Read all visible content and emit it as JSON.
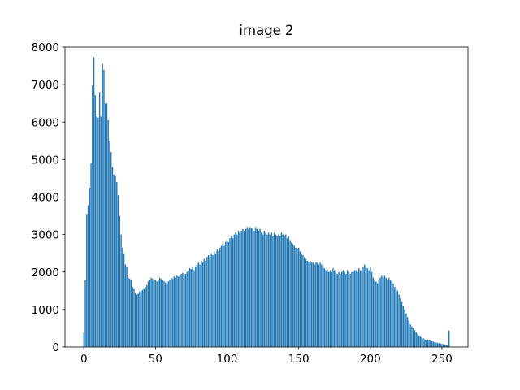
{
  "chart_data": {
    "type": "bar",
    "title": "image 2",
    "color": "#1f77b4",
    "x": [
      0,
      1,
      2,
      3,
      4,
      5,
      6,
      7,
      8,
      9,
      10,
      11,
      12,
      13,
      14,
      15,
      16,
      17,
      18,
      19,
      20,
      21,
      22,
      23,
      24,
      25,
      26,
      27,
      28,
      29,
      30,
      31,
      32,
      33,
      34,
      35,
      36,
      37,
      38,
      39,
      40,
      41,
      42,
      43,
      44,
      45,
      46,
      47,
      48,
      49,
      50,
      51,
      52,
      53,
      54,
      55,
      56,
      57,
      58,
      59,
      60,
      61,
      62,
      63,
      64,
      65,
      66,
      67,
      68,
      69,
      70,
      71,
      72,
      73,
      74,
      75,
      76,
      77,
      78,
      79,
      80,
      81,
      82,
      83,
      84,
      85,
      86,
      87,
      88,
      89,
      90,
      91,
      92,
      93,
      94,
      95,
      96,
      97,
      98,
      99,
      100,
      101,
      102,
      103,
      104,
      105,
      106,
      107,
      108,
      109,
      110,
      111,
      112,
      113,
      114,
      115,
      116,
      117,
      118,
      119,
      120,
      121,
      122,
      123,
      124,
      125,
      126,
      127,
      128,
      129,
      130,
      131,
      132,
      133,
      134,
      135,
      136,
      137,
      138,
      139,
      140,
      141,
      142,
      143,
      144,
      145,
      146,
      147,
      148,
      149,
      150,
      151,
      152,
      153,
      154,
      155,
      156,
      157,
      158,
      159,
      160,
      161,
      162,
      163,
      164,
      165,
      166,
      167,
      168,
      169,
      170,
      171,
      172,
      173,
      174,
      175,
      176,
      177,
      178,
      179,
      180,
      181,
      182,
      183,
      184,
      185,
      186,
      187,
      188,
      189,
      190,
      191,
      192,
      193,
      194,
      195,
      196,
      197,
      198,
      199,
      200,
      201,
      202,
      203,
      204,
      205,
      206,
      207,
      208,
      209,
      210,
      211,
      212,
      213,
      214,
      215,
      216,
      217,
      218,
      219,
      220,
      221,
      222,
      223,
      224,
      225,
      226,
      227,
      228,
      229,
      230,
      231,
      232,
      233,
      234,
      235,
      236,
      237,
      238,
      239,
      240,
      241,
      242,
      243,
      244,
      245,
      246,
      247,
      248,
      249,
      250,
      251,
      252,
      253,
      254,
      255
    ],
    "values": [
      380,
      1780,
      3550,
      3780,
      4250,
      4900,
      6980,
      7730,
      6720,
      6150,
      6120,
      6800,
      6150,
      7560,
      7400,
      6500,
      6500,
      6050,
      5500,
      5200,
      4800,
      4600,
      4580,
      4400,
      4050,
      3500,
      3000,
      2650,
      2500,
      2200,
      2150,
      1850,
      1820,
      1800,
      1600,
      1550,
      1450,
      1400,
      1420,
      1480,
      1500,
      1520,
      1550,
      1600,
      1650,
      1750,
      1800,
      1850,
      1820,
      1800,
      1780,
      1750,
      1800,
      1850,
      1820,
      1800,
      1760,
      1720,
      1700,
      1750,
      1800,
      1850,
      1820,
      1880,
      1850,
      1900,
      1880,
      1920,
      1950,
      1980,
      1900,
      1950,
      2000,
      2050,
      2100,
      2080,
      2150,
      2050,
      2150,
      2200,
      2250,
      2200,
      2300,
      2250,
      2350,
      2300,
      2400,
      2450,
      2400,
      2500,
      2450,
      2550,
      2500,
      2600,
      2550,
      2650,
      2700,
      2750,
      2700,
      2800,
      2850,
      2800,
      2900,
      2950,
      2900,
      3000,
      3050,
      3000,
      3100,
      3050,
      3100,
      3150,
      3100,
      3150,
      3200,
      3150,
      3200,
      3180,
      3150,
      3100,
      3200,
      3150,
      3100,
      3150,
      3050,
      3000,
      3100,
      3050,
      3000,
      3050,
      3000,
      3050,
      2950,
      3050,
      3000,
      2950,
      3000,
      2950,
      3050,
      3000,
      2950,
      3000,
      2900,
      2950,
      2850,
      2800,
      2750,
      2700,
      2650,
      2600,
      2650,
      2550,
      2500,
      2450,
      2400,
      2350,
      2300,
      2250,
      2300,
      2250,
      2250,
      2200,
      2250,
      2250,
      2200,
      2250,
      2200,
      2150,
      2100,
      2050,
      2050,
      2000,
      2050,
      2000,
      2100,
      2050,
      2000,
      1950,
      2000,
      1950,
      2000,
      2050,
      2000,
      1950,
      2050,
      2000,
      1950,
      2000,
      2000,
      2050,
      2050,
      2000,
      2100,
      2050,
      2050,
      2150,
      2200,
      2150,
      2100,
      2050,
      2150,
      2000,
      1850,
      1800,
      1750,
      1700,
      1800,
      1850,
      1900,
      1850,
      1900,
      1850,
      1800,
      1850,
      1800,
      1750,
      1700,
      1600,
      1550,
      1500,
      1400,
      1300,
      1200,
      1100,
      1000,
      900,
      800,
      700,
      600,
      550,
      500,
      450,
      400,
      350,
      300,
      280,
      250,
      230,
      200,
      180,
      200,
      180,
      170,
      150,
      140,
      130,
      120,
      110,
      100,
      90,
      80,
      80,
      70,
      60,
      50,
      440
    ],
    "xlim": [
      -13.19,
      268.19
    ],
    "xticks": [
      0,
      50,
      100,
      150,
      200,
      250
    ],
    "ylim": [
      0,
      8000
    ],
    "yticks": [
      0,
      1000,
      2000,
      3000,
      4000,
      5000,
      6000,
      7000,
      8000
    ]
  }
}
